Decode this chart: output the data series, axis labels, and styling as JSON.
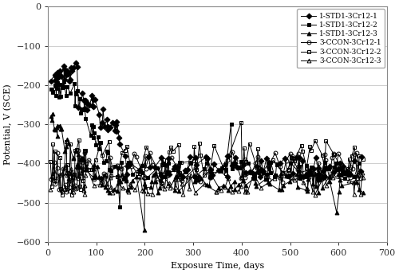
{
  "title": "",
  "xlabel": "Exposure Time, days",
  "ylabel": "Potential, V (SCE)",
  "xlim": [
    0,
    700
  ],
  "ylim": [
    -600,
    0
  ],
  "xticks": [
    0,
    100,
    200,
    300,
    400,
    500,
    600,
    700
  ],
  "yticks": [
    0,
    -100,
    -200,
    -300,
    -400,
    -500,
    -600
  ],
  "legend_labels": [
    "1-STD1-3Cr12-1",
    "1-STD1-3Cr12-2",
    "1-STD1-3Cr12-3",
    "3-CCON-3Cr12-1",
    "3-CCON-3Cr12-2",
    "3-CCON-3Cr12-3"
  ],
  "markers": [
    "D",
    "s",
    "^",
    "o",
    "s",
    "^"
  ],
  "fillstyles": [
    "full",
    "full",
    "full",
    "none",
    "none",
    "none"
  ],
  "markersize": 3.5,
  "linewidth": 0.7,
  "figsize": [
    5.0,
    3.43
  ],
  "dpi": 100,
  "background_color": "#ffffff",
  "font_family": "DejaVu Serif",
  "font_size": 8
}
